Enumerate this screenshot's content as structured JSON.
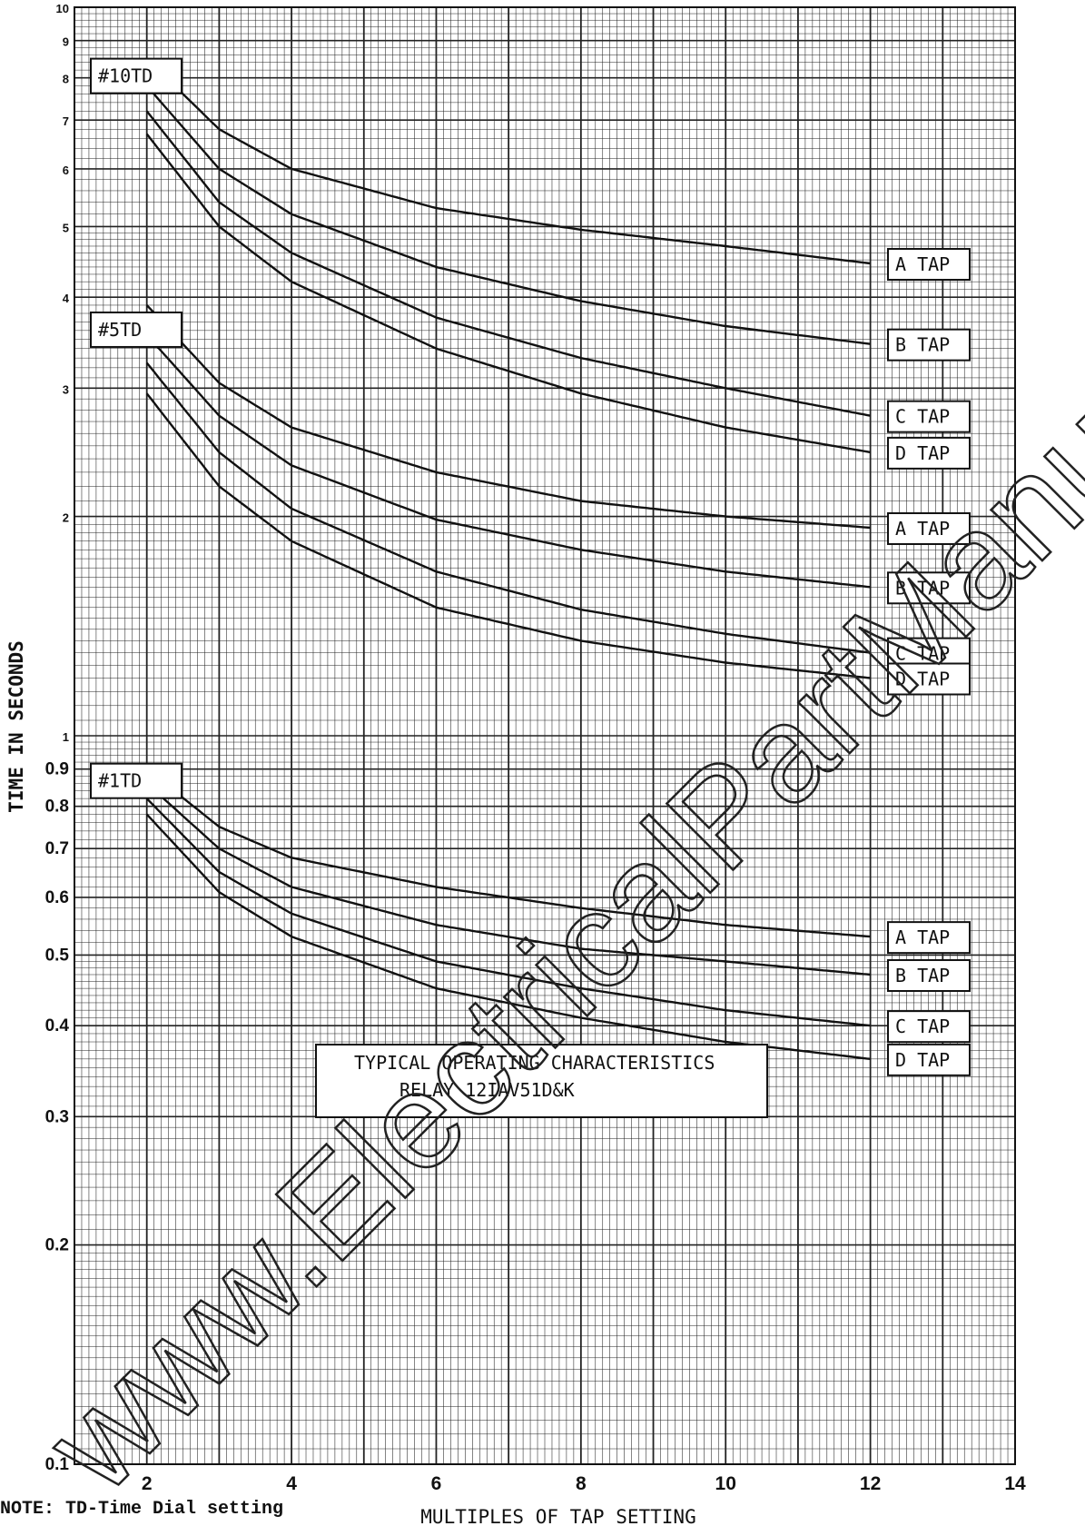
{
  "chart_data": {
    "type": "line",
    "title": "TYPICAL OPERATING CHARACTERISTICS",
    "subtitle": "RELAY 12IAV51D&K",
    "xlabel": "MULTIPLES OF TAP SETTING",
    "ylabel": "TIME IN SECONDS",
    "y_scale": "log",
    "xlim": [
      1,
      14
    ],
    "ylim": [
      0.1,
      10
    ],
    "x_ticks": [
      "2",
      "4",
      "6",
      "8",
      "10",
      "12",
      "14"
    ],
    "y_ticks": [
      {
        "value": 10,
        "label": "10"
      },
      {
        "value": 9,
        "label": "9"
      },
      {
        "value": 8,
        "label": "8"
      },
      {
        "value": 7,
        "label": "7"
      },
      {
        "value": 6,
        "label": "6"
      },
      {
        "value": 5,
        "label": "5"
      },
      {
        "value": 4,
        "label": "4"
      },
      {
        "value": 3,
        "label": "3"
      },
      {
        "value": 2,
        "label": "2"
      },
      {
        "value": 1,
        "label": "1"
      },
      {
        "value": 0.9,
        "label": "0.9"
      },
      {
        "value": 0.8,
        "label": "0.8"
      },
      {
        "value": 0.7,
        "label": "0.7"
      },
      {
        "value": 0.6,
        "label": "0.6"
      },
      {
        "value": 0.5,
        "label": "0.5"
      },
      {
        "value": 0.4,
        "label": "0.4"
      },
      {
        "value": 0.3,
        "label": "0.3"
      },
      {
        "value": 0.2,
        "label": "0.2"
      },
      {
        "value": 0.1,
        "label": "0.1"
      }
    ],
    "groups": [
      {
        "label": "#10TD",
        "series": [
          {
            "name": "A TAP",
            "x": [
              2,
              3,
              4,
              6,
              8,
              10,
              12
            ],
            "y": [
              8.5,
              6.8,
              6.0,
              5.3,
              4.95,
              4.7,
              4.45
            ]
          },
          {
            "name": "B TAP",
            "x": [
              2,
              3,
              4,
              6,
              8,
              10,
              12
            ],
            "y": [
              7.8,
              6.0,
              5.2,
              4.4,
              3.95,
              3.65,
              3.45
            ]
          },
          {
            "name": "C TAP",
            "x": [
              2,
              3,
              4,
              6,
              8,
              10,
              12
            ],
            "y": [
              7.2,
              5.4,
              4.6,
              3.75,
              3.3,
              3.0,
              2.75
            ]
          },
          {
            "name": "D TAP",
            "x": [
              2,
              3,
              4,
              6,
              8,
              10,
              12
            ],
            "y": [
              6.7,
              5.0,
              4.2,
              3.4,
              2.95,
              2.65,
              2.45
            ]
          }
        ]
      },
      {
        "label": "#5TD",
        "series": [
          {
            "name": "A TAP",
            "x": [
              2,
              3,
              4,
              6,
              8,
              10,
              12
            ],
            "y": [
              3.9,
              3.05,
              2.65,
              2.3,
              2.1,
              2.0,
              1.93
            ]
          },
          {
            "name": "B TAP",
            "x": [
              2,
              3,
              4,
              6,
              8,
              10,
              12
            ],
            "y": [
              3.55,
              2.75,
              2.35,
              1.98,
              1.8,
              1.68,
              1.6
            ]
          },
          {
            "name": "C TAP",
            "x": [
              2,
              3,
              4,
              6,
              8,
              10,
              12
            ],
            "y": [
              3.25,
              2.45,
              2.05,
              1.68,
              1.49,
              1.38,
              1.3
            ]
          },
          {
            "name": "D TAP",
            "x": [
              2,
              3,
              4,
              6,
              8,
              10,
              12
            ],
            "y": [
              2.95,
              2.2,
              1.85,
              1.5,
              1.35,
              1.26,
              1.2
            ]
          }
        ]
      },
      {
        "label": "#1TD",
        "series": [
          {
            "name": "A TAP",
            "x": [
              2,
              3,
              4,
              6,
              8,
              10,
              12
            ],
            "y": [
              0.9,
              0.75,
              0.68,
              0.62,
              0.58,
              0.55,
              0.53
            ]
          },
          {
            "name": "B TAP",
            "x": [
              2,
              3,
              4,
              6,
              8,
              10,
              12
            ],
            "y": [
              0.86,
              0.7,
              0.62,
              0.55,
              0.51,
              0.49,
              0.47
            ]
          },
          {
            "name": "C TAP",
            "x": [
              2,
              3,
              4,
              6,
              8,
              10,
              12
            ],
            "y": [
              0.82,
              0.65,
              0.57,
              0.49,
              0.45,
              0.42,
              0.4
            ]
          },
          {
            "name": "D TAP",
            "x": [
              2,
              3,
              4,
              6,
              8,
              10,
              12
            ],
            "y": [
              0.78,
              0.61,
              0.53,
              0.45,
              0.41,
              0.38,
              0.36
            ]
          }
        ]
      }
    ]
  },
  "watermark": "www.ElectricalPartManuals.com",
  "footer_note": "NOTE: TD-Time Dial setting"
}
